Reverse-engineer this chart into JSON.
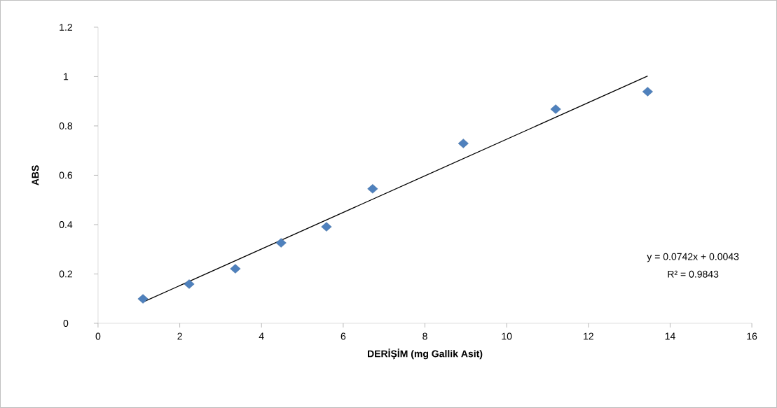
{
  "chart_data": {
    "type": "scatter",
    "xlabel": "DERİŞİM (mg Gallik Asit)",
    "ylabel": "ABS",
    "x": [
      1.1,
      2.23,
      3.36,
      4.48,
      5.59,
      6.72,
      8.94,
      11.2,
      13.45
    ],
    "series": [
      {
        "color": "#4f81bd",
        "marker": "diamond",
        "values": [
          0.099,
          0.159,
          0.221,
          0.326,
          0.391,
          0.545,
          0.729,
          0.868,
          0.939
        ]
      },
      {
        "type": "line",
        "color": "#000000",
        "marker": "none",
        "x": [
          1.1,
          13.45
        ],
        "values": [
          0.086,
          1.002
        ]
      }
    ],
    "xlim": [
      0,
      16
    ],
    "xticks": [
      0,
      2,
      4,
      6,
      8,
      10,
      12,
      14,
      16
    ],
    "ylim": [
      0,
      1.2
    ],
    "yticks": [
      0,
      0.2,
      0.4,
      0.6,
      0.8,
      1,
      1.2
    ],
    "annotations": [
      "y = 0.0742x + 0.0043",
      "R² = 0.9843"
    ],
    "grid": false
  }
}
